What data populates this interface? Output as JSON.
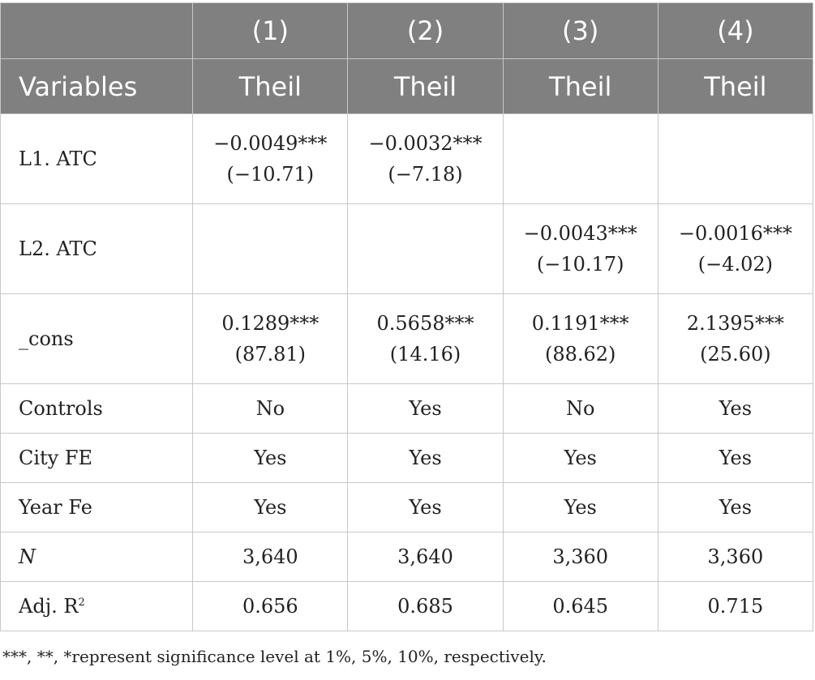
{
  "table": {
    "header_row1": [
      "",
      "(1)",
      "(2)",
      "(3)",
      "(4)"
    ],
    "header_row2": [
      "Variables",
      "Theil",
      "Theil",
      "Theil",
      "Theil"
    ],
    "rows": [
      {
        "label": "L1. ATC",
        "cells": [
          {
            "coef": "−0.0049***",
            "tstat": "(−10.71)"
          },
          {
            "coef": "−0.0032***",
            "tstat": "(−7.18)"
          },
          {
            "coef": "",
            "tstat": ""
          },
          {
            "coef": "",
            "tstat": ""
          }
        ]
      },
      {
        "label": "L2. ATC",
        "cells": [
          {
            "coef": "",
            "tstat": ""
          },
          {
            "coef": "",
            "tstat": ""
          },
          {
            "coef": "−0.0043***",
            "tstat": "(−10.17)"
          },
          {
            "coef": "−0.0016***",
            "tstat": "(−4.02)"
          }
        ]
      },
      {
        "label": "_cons",
        "cells": [
          {
            "coef": "0.1289***",
            "tstat": "(87.81)"
          },
          {
            "coef": "0.5658***",
            "tstat": "(14.16)"
          },
          {
            "coef": "0.1191***",
            "tstat": "(88.62)"
          },
          {
            "coef": "2.1395***",
            "tstat": "(25.60)"
          }
        ]
      },
      {
        "label": "Controls",
        "values": [
          "No",
          "Yes",
          "No",
          "Yes"
        ]
      },
      {
        "label": "City FE",
        "values": [
          "Yes",
          "Yes",
          "Yes",
          "Yes"
        ]
      },
      {
        "label": "Year Fe",
        "values": [
          "Yes",
          "Yes",
          "Yes",
          "Yes"
        ]
      },
      {
        "label": "N",
        "values": [
          "3,640",
          "3,640",
          "3,360",
          "3,360"
        ]
      },
      {
        "label": "Adj. R",
        "label_sup": "2",
        "values": [
          "0.656",
          "0.685",
          "0.645",
          "0.715"
        ]
      }
    ]
  },
  "note": "***, **, *represent significance level at 1%, 5%, 10%, respectively."
}
